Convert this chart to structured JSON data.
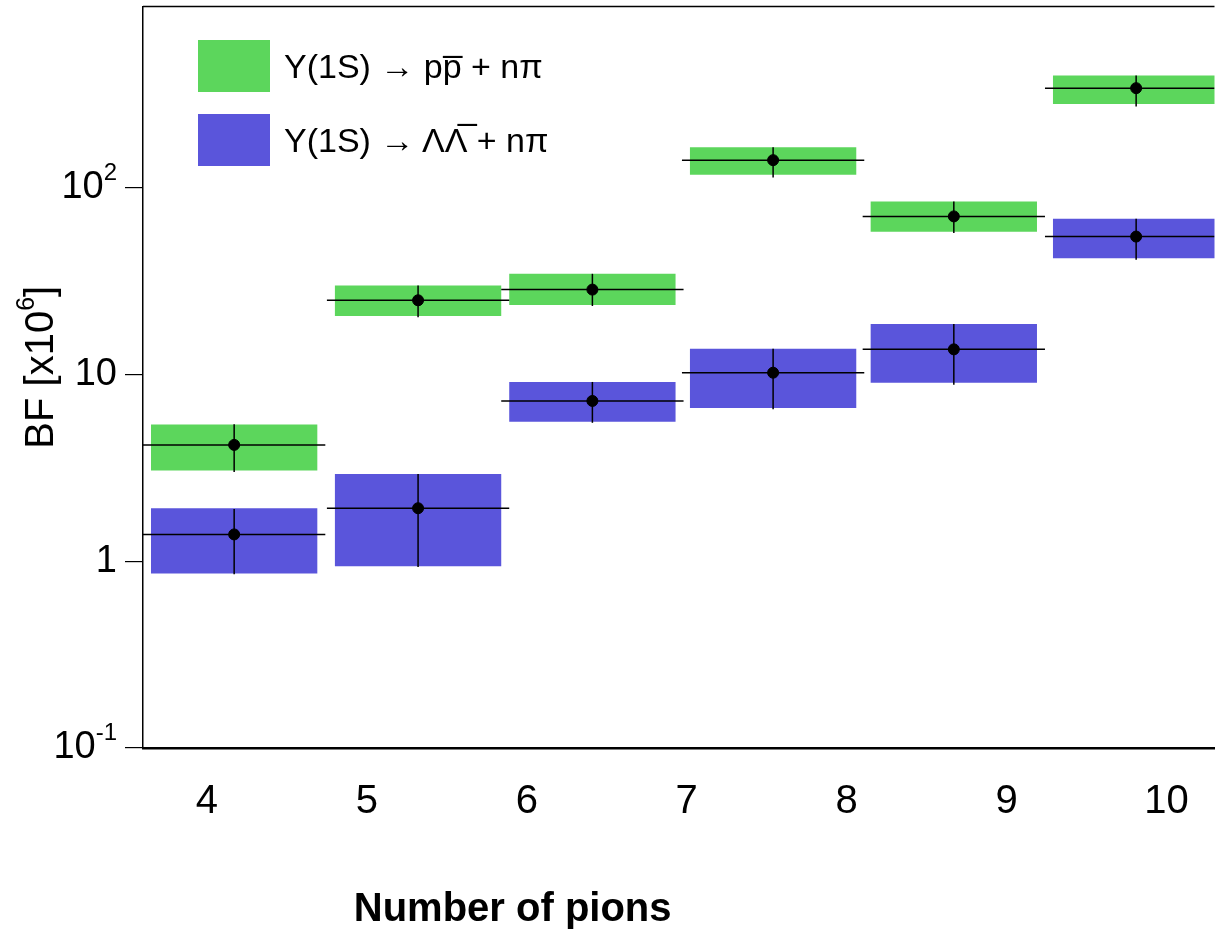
{
  "chart_data": {
    "type": "bar",
    "xlabel": "Number of pions",
    "ylabel": "BF [x10$^{6}$]",
    "log": "y",
    "legend": "top left",
    "marker": "circle",
    "grid": false,
    "xlim": [
      3.6,
      10.3
    ],
    "xticks": [
      4,
      5,
      6,
      7,
      8,
      9,
      10
    ],
    "ylim": [
      0.1,
      930
    ],
    "yticks": [
      {
        "value": 0.1,
        "label": "10$^{-1}$"
      },
      1,
      10,
      {
        "value": 100,
        "label": "10$^{2}$"
      }
    ],
    "series": [
      {
        "name": "Υ(1S) → pp̅ + nπ",
        "color": "#5cd65c",
        "x": [
          4.17,
          5.32,
          6.41,
          7.54,
          8.67,
          9.81
        ],
        "base": [
          3.06,
          20.5,
          23.5,
          117,
          58,
          280
        ],
        "values": [
          2.33,
          9.4,
          11,
          47,
          26,
          117
        ]
      },
      {
        "name": "Υ(1S) → ΛΛ̅ + nπ",
        "color": "#5a55db",
        "x": [
          4.17,
          5.32,
          6.41,
          7.54,
          8.67,
          9.81
        ],
        "base": [
          0.86,
          0.94,
          5.57,
          6.6,
          9.0,
          41.8
        ],
        "values": [
          1.06,
          1.99,
          3.53,
          7.1,
          9.6,
          26.2
        ]
      },
      {
        "type": "scatter",
        "color": "#000000",
        "x": [
          4.17,
          5.32,
          6.41,
          7.54,
          8.67,
          9.81
        ],
        "values": [
          4.19,
          24.9,
          28.4,
          140,
          70,
          340
        ],
        "errors": [
          [
            3.0,
            5.4
          ],
          [
            20.2,
            29.9
          ],
          [
            23.2,
            34.5
          ],
          [
            113,
            164
          ],
          [
            57,
            84
          ],
          [
            271,
            397
          ]
        ],
        "xerrors": [
          0.57,
          0.57,
          0.57,
          0.57,
          0.57,
          [
            9.24,
            10.3
          ]
        ]
      },
      {
        "type": "scatter",
        "color": "#000000",
        "x": [
          4.17,
          5.32,
          6.41,
          7.54,
          8.67,
          9.81
        ],
        "values": [
          1.39,
          1.92,
          7.2,
          10.2,
          13.6,
          54.6
        ],
        "errors": [
          [
            0.85,
            1.9
          ],
          [
            0.93,
            2.93
          ],
          [
            5.5,
            9.1
          ],
          [
            6.5,
            13.7
          ],
          [
            8.8,
            18.6
          ],
          [
            41,
            68
          ]
        ],
        "xerrors": [
          0.57,
          0.57,
          0.57,
          0.57,
          0.57,
          [
            9.24,
            10.3
          ]
        ]
      }
    ]
  }
}
